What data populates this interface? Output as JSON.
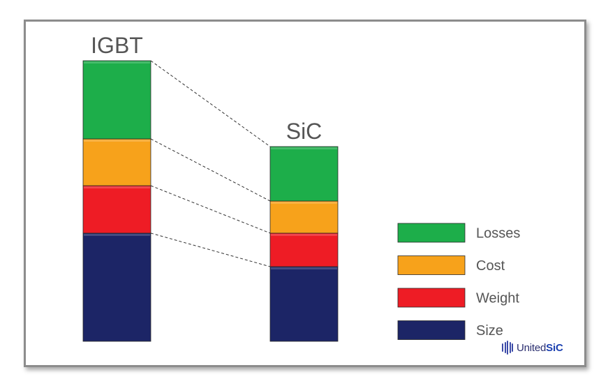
{
  "chart_data": {
    "type": "bar",
    "stacked": true,
    "categories": [
      "IGBT",
      "SiC"
    ],
    "series": [
      {
        "name": "Size",
        "values": [
          155,
          107
        ],
        "color": "#1c2566"
      },
      {
        "name": "Weight",
        "values": [
          68,
          48
        ],
        "color": "#ee1c25"
      },
      {
        "name": "Cost",
        "values": [
          67,
          46
        ],
        "color": "#f7a21b"
      },
      {
        "name": "Losses",
        "values": [
          112,
          78
        ],
        "color": "#1dae4a"
      }
    ],
    "legend_order": [
      "Losses",
      "Cost",
      "Weight",
      "Size"
    ],
    "legend_position": "right",
    "connector_lines": "dashed",
    "axes_visible": false,
    "grid": false
  },
  "logo": {
    "prefix": "United",
    "suffix": "SiC"
  }
}
